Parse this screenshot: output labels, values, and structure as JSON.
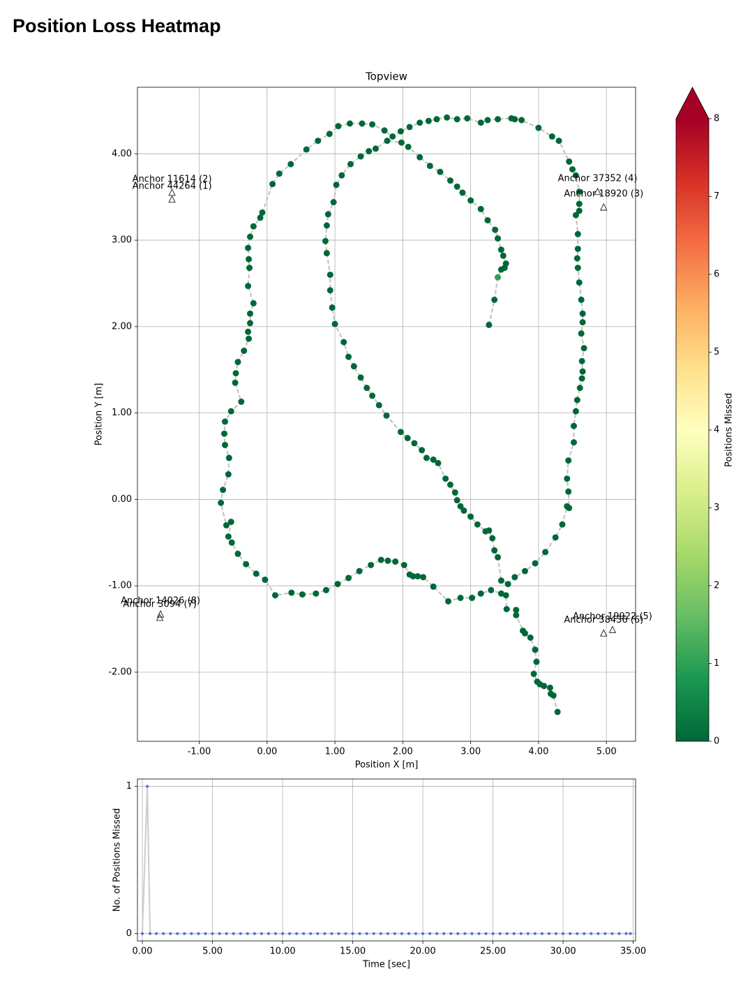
{
  "heading": "Position Loss Heatmap",
  "chart_data": [
    {
      "type": "scatter",
      "title": "Topview",
      "xlabel": "Position X [m]",
      "ylabel": "Position Y [m]",
      "x": [
        3.27,
        3.35,
        3.4,
        3.45,
        3.5,
        3.52,
        3.48,
        3.45,
        3.4,
        3.36,
        3.25,
        3.15,
        3.0,
        2.88,
        2.8,
        2.7,
        2.55,
        2.4,
        2.25,
        2.08,
        1.98,
        1.77,
        1.6,
        1.5,
        1.38,
        1.23,
        1.1,
        1.02,
        0.98,
        0.9,
        0.88,
        0.86,
        0.88,
        0.93,
        0.93,
        0.96,
        1.0,
        1.13,
        1.2,
        1.28,
        1.38,
        1.47,
        1.55,
        1.65,
        1.76,
        1.97,
        2.07,
        2.17,
        2.28,
        2.35,
        2.45,
        2.52,
        2.63,
        2.7,
        2.77,
        2.8,
        2.85,
        2.9,
        3.0,
        3.1,
        3.22,
        3.27,
        3.32,
        3.35,
        3.4,
        3.45,
        3.55,
        3.65,
        3.8,
        3.95,
        4.1,
        4.25,
        4.35,
        4.42,
        4.45,
        4.44,
        4.42,
        4.44,
        4.52,
        4.52,
        4.55,
        4.57,
        4.61,
        4.64,
        4.65,
        4.64,
        4.67,
        4.63,
        4.65,
        4.65,
        4.63,
        4.6,
        4.58,
        4.57,
        4.58,
        4.58,
        4.55,
        4.6,
        4.6,
        4.6,
        4.55,
        4.5,
        4.45,
        4.3,
        4.2,
        4.0,
        3.75,
        3.65,
        3.6,
        3.4,
        3.25,
        3.15,
        2.95,
        2.8,
        2.65,
        2.5,
        2.38,
        2.25,
        2.1,
        1.97,
        1.85,
        1.73,
        1.55,
        1.4,
        1.22,
        1.05,
        0.92,
        0.75,
        0.58,
        0.35,
        0.18,
        0.08,
        -0.07,
        -0.1,
        -0.2,
        -0.25,
        -0.28,
        -0.27,
        -0.26,
        -0.28,
        -0.2,
        -0.25,
        -0.25,
        -0.28,
        -0.27,
        -0.34,
        -0.43,
        -0.46,
        -0.47,
        -0.38,
        -0.53,
        -0.62,
        -0.63,
        -0.62,
        -0.56,
        -0.57,
        -0.65,
        -0.68,
        -0.6,
        -0.53,
        -0.57,
        -0.52,
        -0.43,
        -0.31,
        -0.16,
        -0.03,
        0.12,
        0.36,
        0.52,
        0.72,
        0.87,
        1.04,
        1.2,
        1.36,
        1.53,
        1.68,
        1.78,
        1.89,
        2.02,
        2.1,
        2.15,
        2.22,
        2.3,
        2.45,
        2.67,
        2.85,
        3.02,
        3.15,
        3.3,
        3.45,
        3.52,
        3.53,
        3.67,
        3.67,
        3.77,
        3.8,
        3.88,
        3.95,
        3.97,
        3.93,
        3.98,
        4.02,
        4.08,
        4.17,
        4.18,
        4.22,
        4.28
      ],
      "y": [
        2.02,
        2.31,
        2.57,
        2.66,
        2.68,
        2.73,
        2.82,
        2.89,
        3.02,
        3.12,
        3.23,
        3.36,
        3.46,
        3.55,
        3.62,
        3.69,
        3.79,
        3.86,
        3.96,
        4.08,
        4.13,
        4.15,
        4.06,
        4.03,
        3.97,
        3.88,
        3.75,
        3.64,
        3.44,
        3.3,
        3.17,
        2.99,
        2.85,
        2.6,
        2.42,
        2.22,
        2.03,
        1.82,
        1.65,
        1.54,
        1.41,
        1.29,
        1.2,
        1.09,
        0.97,
        0.78,
        0.71,
        0.65,
        0.57,
        0.48,
        0.46,
        0.42,
        0.24,
        0.17,
        0.08,
        -0.01,
        -0.08,
        -0.13,
        -0.2,
        -0.29,
        -0.37,
        -0.36,
        -0.45,
        -0.59,
        -0.67,
        -0.94,
        -0.98,
        -0.9,
        -0.83,
        -0.74,
        -0.61,
        -0.44,
        -0.29,
        -0.08,
        -0.1,
        0.09,
        0.24,
        0.45,
        0.66,
        0.85,
        1.02,
        1.15,
        1.29,
        1.4,
        1.48,
        1.6,
        1.75,
        1.92,
        2.05,
        2.15,
        2.31,
        2.51,
        2.68,
        2.79,
        2.9,
        3.07,
        3.29,
        3.34,
        3.42,
        3.56,
        3.75,
        3.82,
        3.91,
        4.15,
        4.2,
        4.3,
        4.39,
        4.4,
        4.41,
        4.4,
        4.39,
        4.36,
        4.41,
        4.4,
        4.42,
        4.4,
        4.38,
        4.36,
        4.31,
        4.26,
        4.2,
        4.27,
        4.34,
        4.35,
        4.35,
        4.32,
        4.23,
        4.15,
        4.05,
        3.88,
        3.77,
        3.65,
        3.32,
        3.26,
        3.16,
        3.04,
        2.91,
        2.78,
        2.68,
        2.47,
        2.27,
        2.15,
        2.04,
        1.94,
        1.86,
        1.72,
        1.59,
        1.46,
        1.35,
        1.13,
        1.02,
        0.9,
        0.76,
        0.63,
        0.48,
        0.29,
        0.11,
        -0.04,
        -0.3,
        -0.26,
        -0.43,
        -0.5,
        -0.63,
        -0.75,
        -0.86,
        -0.93,
        -1.11,
        -1.08,
        -1.1,
        -1.09,
        -1.05,
        -0.98,
        -0.91,
        -0.83,
        -0.76,
        -0.7,
        -0.71,
        -0.72,
        -0.76,
        -0.87,
        -0.89,
        -0.89,
        -0.9,
        -1.01,
        -1.18,
        -1.14,
        -1.14,
        -1.09,
        -1.05,
        -1.09,
        -1.11,
        -1.27,
        -1.28,
        -1.34,
        -1.52,
        -1.55,
        -1.6,
        -1.74,
        -1.88,
        -2.02,
        -2.11,
        -2.14,
        -2.16,
        -2.18,
        -2.25,
        -2.27,
        -2.46
      ],
      "missed": [
        0,
        0,
        1,
        0,
        0,
        0,
        0,
        0,
        0,
        0,
        0,
        0,
        0,
        0,
        0,
        0,
        0,
        0,
        0,
        0,
        0,
        0,
        0,
        0,
        0,
        0,
        0,
        0,
        0,
        0,
        0,
        0,
        0,
        0,
        0,
        0,
        0,
        0,
        0,
        0,
        0,
        0,
        0,
        0,
        0,
        0,
        0,
        0,
        0,
        0,
        0,
        0,
        0,
        0,
        0,
        0,
        0,
        0,
        0,
        0,
        0,
        0,
        0,
        0,
        0,
        0,
        0,
        0,
        0,
        0,
        0,
        0,
        0,
        0,
        0,
        0,
        0,
        0,
        0,
        0,
        0,
        0,
        0,
        0,
        0,
        0,
        0,
        0,
        0,
        0,
        0,
        0,
        0,
        0,
        0,
        0,
        0,
        0,
        0,
        0,
        0,
        0,
        0,
        0,
        0,
        0,
        0,
        0,
        0,
        0,
        0,
        0,
        0,
        0,
        0,
        0,
        0,
        0,
        0,
        0,
        0,
        0,
        0,
        0,
        0,
        0,
        0,
        0,
        0,
        0,
        0,
        0,
        0,
        0,
        0,
        0,
        0,
        0,
        0,
        0,
        0,
        0,
        0,
        0,
        0,
        0,
        0,
        0,
        0,
        0,
        0,
        0,
        0,
        0,
        0,
        0,
        0,
        0,
        0,
        0,
        0,
        0,
        0,
        0,
        0,
        0,
        0,
        0,
        0,
        0,
        0,
        0,
        0,
        0,
        0,
        0,
        0,
        0,
        0,
        0,
        0,
        0,
        0,
        0,
        0,
        0,
        0,
        0,
        0,
        0,
        0,
        0,
        0,
        0,
        0,
        0,
        0,
        0,
        0,
        0,
        0,
        0,
        0,
        0,
        0,
        0,
        0
      ],
      "line_color": "#c0c0c0",
      "colormap": "RdYlGn_r",
      "clim": [
        0,
        8
      ],
      "cticks": [
        0,
        1,
        2,
        3,
        4,
        5,
        6,
        7,
        8
      ],
      "colorbar_label": "Positions Missed",
      "colorbar_extend": "max",
      "anchors": [
        {
          "name": "Anchor 11614 (2)",
          "x": -1.4,
          "y": 3.55
        },
        {
          "name": "Anchor 44264 (1)",
          "x": -1.4,
          "y": 3.47
        },
        {
          "name": "Anchor 37352 (4)",
          "x": 4.87,
          "y": 3.56
        },
        {
          "name": "Anchor 18920 (3)",
          "x": 4.96,
          "y": 3.38
        },
        {
          "name": "Anchor 14026 (8)",
          "x": -1.57,
          "y": -1.33
        },
        {
          "name": "Anchor 3094 (7)",
          "x": -1.58,
          "y": -1.37
        },
        {
          "name": "Anchor 19922 (5)",
          "x": 5.09,
          "y": -1.51
        },
        {
          "name": "Anchor 38436 (6)",
          "x": 4.96,
          "y": -1.55
        }
      ],
      "xlim": [
        -1.91,
        5.43
      ],
      "ylim": [
        -2.8,
        4.77
      ],
      "xticks": [
        {
          "value": -1,
          "label": "-1.00"
        },
        {
          "value": 0,
          "label": "0.00"
        },
        {
          "value": 1,
          "label": "1.00"
        },
        {
          "value": 2,
          "label": "2.00"
        },
        {
          "value": 3,
          "label": "3.00"
        },
        {
          "value": 4,
          "label": "4.00"
        },
        {
          "value": 5,
          "label": "5.00"
        }
      ],
      "yticks": [
        {
          "value": -2,
          "label": "-2.00"
        },
        {
          "value": -1,
          "label": "-1.00"
        },
        {
          "value": 0,
          "label": "0.00"
        },
        {
          "value": 1,
          "label": "1.00"
        },
        {
          "value": 2,
          "label": "2.00"
        },
        {
          "value": 3,
          "label": "3.00"
        },
        {
          "value": 4,
          "label": "4.00"
        }
      ],
      "grid": true
    },
    {
      "type": "line",
      "xlabel": "Time [sec]",
      "ylabel": "No. of Positions Missed",
      "x": [
        0,
        0.35,
        0.55,
        1,
        1.5,
        2,
        2.5,
        3,
        3.5,
        4,
        4.5,
        5,
        5.5,
        6,
        6.5,
        7,
        7.5,
        8,
        8.5,
        9,
        9.5,
        10,
        10.5,
        11,
        11.5,
        12,
        12.5,
        13,
        13.5,
        14,
        14.5,
        15,
        15.5,
        16,
        16.5,
        17,
        17.5,
        18,
        18.5,
        19,
        19.5,
        20,
        20.5,
        21,
        21.5,
        22,
        22.5,
        23,
        23.5,
        24,
        24.5,
        25,
        25.5,
        26,
        26.5,
        27,
        27.5,
        28,
        28.5,
        29,
        29.5,
        30,
        30.5,
        31,
        31.5,
        32,
        32.5,
        33,
        33.5,
        34,
        34.5,
        34.8
      ],
      "values": [
        0,
        1,
        0,
        0,
        0,
        0,
        0,
        0,
        0,
        0,
        0,
        0,
        0,
        0,
        0,
        0,
        0,
        0,
        0,
        0,
        0,
        0,
        0,
        0,
        0,
        0,
        0,
        0,
        0,
        0,
        0,
        0,
        0,
        0,
        0,
        0,
        0,
        0,
        0,
        0,
        0,
        0,
        0,
        0,
        0,
        0,
        0,
        0,
        0,
        0,
        0,
        0,
        0,
        0,
        0,
        0,
        0,
        0,
        0,
        0,
        0,
        0,
        0,
        0,
        0,
        0,
        0,
        0,
        0,
        0,
        0,
        0
      ],
      "color": "#4c6fd0",
      "line_color": "#cccccc",
      "xlim": [
        -0.35,
        35.17
      ],
      "ylim": [
        -0.05,
        1.05
      ],
      "xticks": [
        {
          "value": 0,
          "label": "0.00"
        },
        {
          "value": 5,
          "label": "5.00"
        },
        {
          "value": 10,
          "label": "10.00"
        },
        {
          "value": 15,
          "label": "15.00"
        },
        {
          "value": 20,
          "label": "20.00"
        },
        {
          "value": 25,
          "label": "25.00"
        },
        {
          "value": 30,
          "label": "30.00"
        },
        {
          "value": 35,
          "label": "35.00"
        }
      ],
      "yticks": [
        0,
        1
      ],
      "grid": true
    }
  ]
}
